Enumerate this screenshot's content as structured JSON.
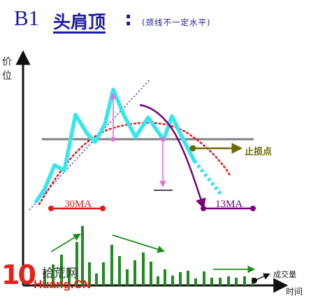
{
  "title": {
    "code": "B1",
    "name": "头肩顶",
    "colon": ":",
    "note": "(颈线不一定水平)"
  },
  "axis": {
    "y_label": "价位",
    "x_label": "时间"
  },
  "labels": {
    "ma30": "30MA",
    "ma13": "13MA",
    "stop_loss": "止损点",
    "volume": "成交量"
  },
  "watermark": {
    "number": "10",
    "name": "拾荒网",
    "url": "Huang.CN"
  },
  "colors": {
    "price_line": "#33e8ee",
    "ma30": "#e31919",
    "ma13": "#7a007a",
    "neckline": "#808080",
    "trendline": "#3a3ad6",
    "volume": "#1e8c1e",
    "stop_marker": "#6b6b00",
    "accent_text": "#1a1aa8"
  }
}
